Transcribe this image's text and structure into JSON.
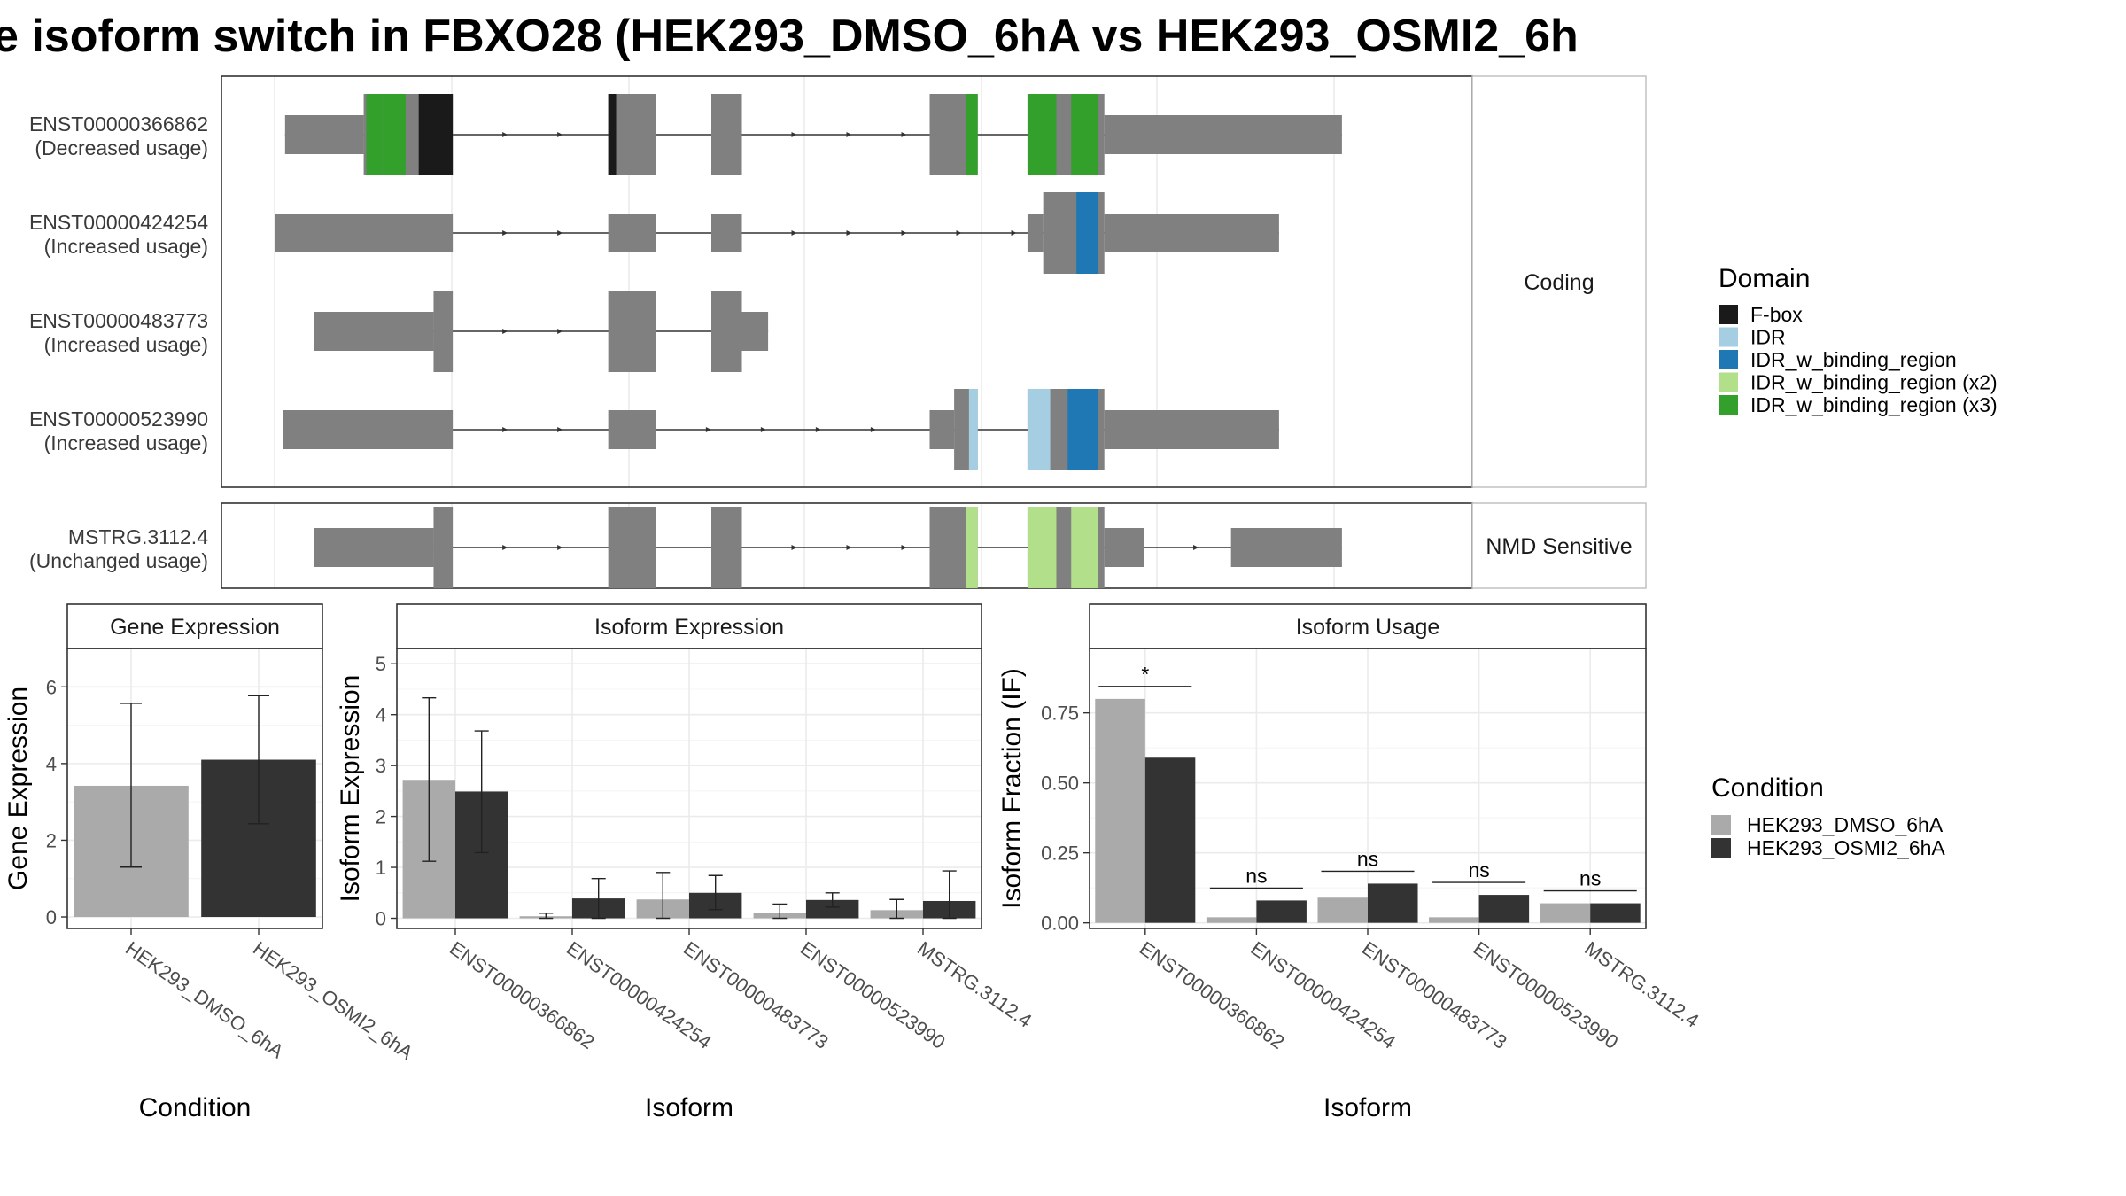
{
  "title": "e isoform switch in FBXO28 (HEK293_DMSO_6hA vs HEK293_OSMI2_6h",
  "colors": {
    "exon": "#808080",
    "HEK293_DMSO_6hA": "#aaaaaa",
    "HEK293_OSMI2_6hA": "#333333",
    "F-box": "#1a1a1a",
    "IDR": "#a6cee3",
    "IDR_w_binding_region": "#1f78b4",
    "IDR_w_binding_region (x2)": "#b2df8a",
    "IDR_w_binding_region (x3)": "#33a02c"
  },
  "structure": {
    "coding_label": "Coding",
    "nmd_label": "NMD Sensitive",
    "coding_transcripts": [
      {
        "id": "ENST00000366862",
        "usage": "(Decreased usage)",
        "exons": [
          {
            "s": 0.012,
            "e": 0.102,
            "h": "thin"
          },
          {
            "s": 0.102,
            "e": 0.204,
            "h": "thick"
          },
          {
            "s": 0.382,
            "e": 0.437,
            "h": "thick"
          },
          {
            "s": 0.5,
            "e": 0.535,
            "h": "thick"
          },
          {
            "s": 0.75,
            "e": 0.805,
            "h": "thick"
          },
          {
            "s": 0.862,
            "e": 0.95,
            "h": "thick"
          },
          {
            "s": 0.95,
            "e": 1.222,
            "h": "thin"
          }
        ],
        "domains": [
          {
            "s": 0.105,
            "e": 0.123,
            "d": "IDR_w_binding_region (x3)"
          },
          {
            "s": 0.123,
            "e": 0.15,
            "d": "IDR_w_binding_region (x3)"
          },
          {
            "s": 0.165,
            "e": 0.204,
            "d": "F-box"
          },
          {
            "s": 0.382,
            "e": 0.391,
            "d": "F-box"
          },
          {
            "s": 0.792,
            "e": 0.805,
            "d": "IDR_w_binding_region (x3)"
          },
          {
            "s": 0.862,
            "e": 0.895,
            "d": "IDR_w_binding_region (x3)"
          },
          {
            "s": 0.912,
            "e": 0.943,
            "d": "IDR_w_binding_region (x3)"
          }
        ]
      },
      {
        "id": "ENST00000424254",
        "usage": "(Increased usage)",
        "exons": [
          {
            "s": 0.0,
            "e": 0.204,
            "h": "thin"
          },
          {
            "s": 0.382,
            "e": 0.437,
            "h": "thin"
          },
          {
            "s": 0.5,
            "e": 0.535,
            "h": "thin"
          },
          {
            "s": 0.862,
            "e": 0.88,
            "h": "thin"
          },
          {
            "s": 0.88,
            "e": 0.95,
            "h": "thick"
          },
          {
            "s": 0.95,
            "e": 1.15,
            "h": "thin"
          }
        ],
        "domains": [
          {
            "s": 0.918,
            "e": 0.943,
            "d": "IDR_w_binding_region"
          }
        ]
      },
      {
        "id": "ENST00000483773",
        "usage": "(Increased usage)",
        "exons": [
          {
            "s": 0.045,
            "e": 0.182,
            "h": "thin"
          },
          {
            "s": 0.182,
            "e": 0.204,
            "h": "thick"
          },
          {
            "s": 0.382,
            "e": 0.437,
            "h": "thick"
          },
          {
            "s": 0.5,
            "e": 0.535,
            "h": "thick"
          },
          {
            "s": 0.535,
            "e": 0.565,
            "h": "thin"
          }
        ],
        "domains": []
      },
      {
        "id": "ENST00000523990",
        "usage": "(Increased usage)",
        "exons": [
          {
            "s": 0.01,
            "e": 0.204,
            "h": "thin"
          },
          {
            "s": 0.382,
            "e": 0.437,
            "h": "thin"
          },
          {
            "s": 0.75,
            "e": 0.778,
            "h": "thin"
          },
          {
            "s": 0.778,
            "e": 0.805,
            "h": "thick"
          },
          {
            "s": 0.862,
            "e": 0.95,
            "h": "thick"
          },
          {
            "s": 0.95,
            "e": 1.15,
            "h": "thin"
          }
        ],
        "domains": [
          {
            "s": 0.795,
            "e": 0.805,
            "d": "IDR"
          },
          {
            "s": 0.862,
            "e": 0.888,
            "d": "IDR"
          },
          {
            "s": 0.908,
            "e": 0.943,
            "d": "IDR_w_binding_region"
          }
        ]
      }
    ],
    "nmd_transcripts": [
      {
        "id": "MSTRG.3112.4",
        "usage": "(Unchanged usage)",
        "exons": [
          {
            "s": 0.045,
            "e": 0.182,
            "h": "thin"
          },
          {
            "s": 0.182,
            "e": 0.204,
            "h": "thick"
          },
          {
            "s": 0.382,
            "e": 0.437,
            "h": "thick"
          },
          {
            "s": 0.5,
            "e": 0.535,
            "h": "thick"
          },
          {
            "s": 0.75,
            "e": 0.805,
            "h": "thick"
          },
          {
            "s": 0.862,
            "e": 0.95,
            "h": "thick"
          },
          {
            "s": 0.95,
            "e": 0.995,
            "h": "thin"
          },
          {
            "s": 1.095,
            "e": 1.222,
            "h": "thin"
          }
        ],
        "domains": [
          {
            "s": 0.792,
            "e": 0.805,
            "d": "IDR_w_binding_region (x2)"
          },
          {
            "s": 0.862,
            "e": 0.895,
            "d": "IDR_w_binding_region (x2)"
          },
          {
            "s": 0.912,
            "e": 0.943,
            "d": "IDR_w_binding_region (x2)"
          }
        ]
      }
    ]
  },
  "legend_domain": {
    "title": "Domain",
    "items": [
      "F-box",
      "IDR",
      "IDR_w_binding_region",
      "IDR_w_binding_region (x2)",
      "IDR_w_binding_region (x3)"
    ]
  },
  "legend_condition": {
    "title": "Condition",
    "items": [
      "HEK293_DMSO_6hA",
      "HEK293_OSMI2_6hA"
    ]
  },
  "chart_data": [
    {
      "type": "bar",
      "title": "Gene Expression",
      "xlabel": "Condition",
      "ylabel": "Gene Expression",
      "ylim": [
        -0.3,
        7.0
      ],
      "yticks": [
        0,
        2,
        4,
        6
      ],
      "categories": [
        "HEK293_DMSO_6hA",
        "HEK293_OSMI2_6hA"
      ],
      "values": [
        3.42,
        4.1
      ],
      "errors": [
        [
          1.3,
          5.57
        ],
        [
          2.43,
          5.77
        ]
      ]
    },
    {
      "type": "bar",
      "title": "Isoform Expression",
      "xlabel": "Isoform",
      "ylabel": "Isoform Expression",
      "ylim": [
        -0.2,
        5.3
      ],
      "yticks": [
        0,
        1,
        2,
        3,
        4,
        5
      ],
      "categories": [
        "ENST00000366862",
        "ENST00000424254",
        "ENST00000483773",
        "ENST00000523990",
        "MSTRG.3112.4"
      ],
      "series": [
        {
          "name": "HEK293_DMSO_6hA",
          "values": [
            2.72,
            0.04,
            0.37,
            0.1,
            0.16
          ],
          "errors": [
            [
              1.12,
              4.33
            ],
            [
              0.0,
              0.1
            ],
            [
              0.0,
              0.9
            ],
            [
              0.0,
              0.28
            ],
            [
              0.0,
              0.37
            ]
          ]
        },
        {
          "name": "HEK293_OSMI2_6hA",
          "values": [
            2.49,
            0.39,
            0.5,
            0.36,
            0.34
          ],
          "errors": [
            [
              1.29,
              3.68
            ],
            [
              0.0,
              0.78
            ],
            [
              0.17,
              0.84
            ],
            [
              0.22,
              0.5
            ],
            [
              0.0,
              0.93
            ]
          ]
        }
      ]
    },
    {
      "type": "bar",
      "title": "Isoform Usage",
      "xlabel": "Isoform",
      "ylabel": "Isoform Fraction (IF)",
      "ylim": [
        -0.02,
        0.98
      ],
      "yticks": [
        0.0,
        0.25,
        0.5,
        0.75
      ],
      "ytick_labels": [
        "0.00",
        "0.25",
        "0.50",
        "0.75"
      ],
      "categories": [
        "ENST00000366862",
        "ENST00000424254",
        "ENST00000483773",
        "ENST00000523990",
        "MSTRG.3112.4"
      ],
      "series": [
        {
          "name": "HEK293_DMSO_6hA",
          "values": [
            0.8,
            0.02,
            0.09,
            0.02,
            0.07
          ]
        },
        {
          "name": "HEK293_OSMI2_6hA",
          "values": [
            0.59,
            0.08,
            0.14,
            0.1,
            0.07
          ]
        }
      ],
      "significance": [
        "*",
        "ns",
        "ns",
        "ns",
        "ns"
      ]
    }
  ]
}
